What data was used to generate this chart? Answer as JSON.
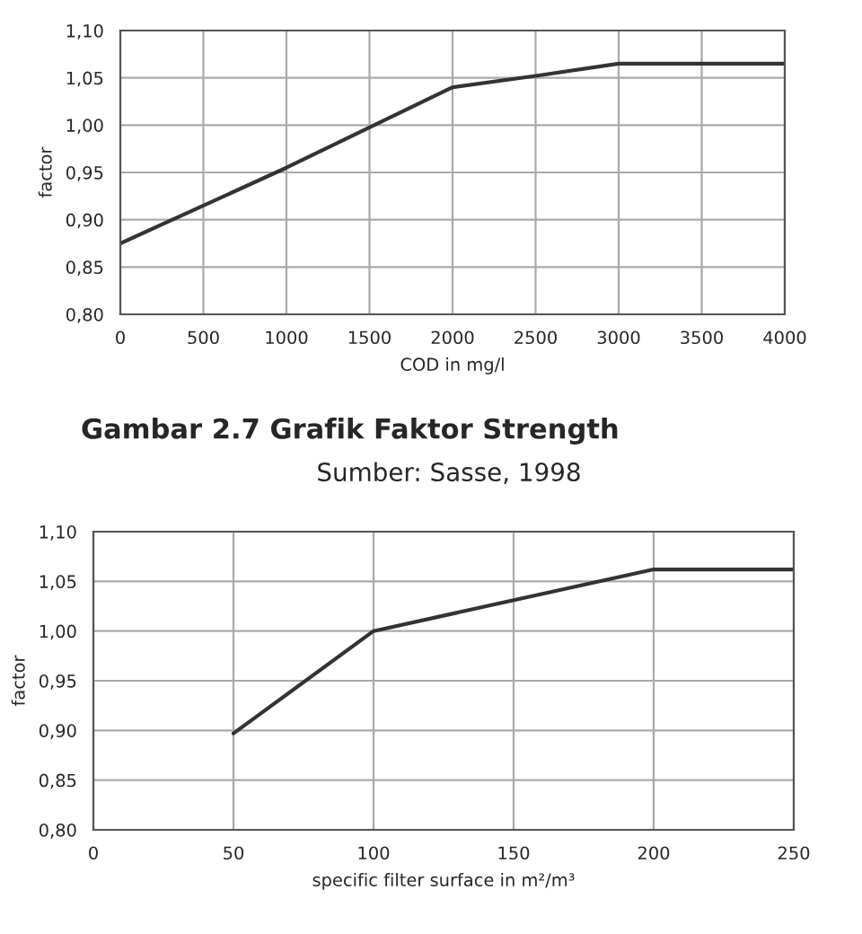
{
  "chart_data": [
    {
      "type": "line",
      "xlabel": "COD in mg/l",
      "ylabel": "factor",
      "annotations": [
        "Gambar 2.7 Grafik Faktor Strength",
        "Sumber: Sasse, 1998"
      ],
      "x": [
        0,
        1000,
        2000,
        2500,
        3000,
        4000
      ],
      "series": [
        {
          "color": "#333333",
          "values": [
            0.875,
            0.955,
            1.04,
            1.052,
            1.065,
            1.065
          ]
        }
      ],
      "xlim": [
        0,
        4000
      ],
      "xticks": [
        0,
        500,
        1000,
        1500,
        2000,
        2500,
        3000,
        3500,
        4000
      ],
      "ylim": [
        0.8,
        1.1
      ],
      "yticks": [
        {
          "value": 0.8,
          "label": "0,80"
        },
        {
          "value": 0.85,
          "label": "0,85"
        },
        {
          "value": 0.9,
          "label": "0,90"
        },
        {
          "value": 0.95,
          "label": "0,95"
        },
        {
          "value": 1.0,
          "label": "1,00"
        },
        {
          "value": 1.05,
          "label": "1,05"
        },
        {
          "value": 1.1,
          "label": "1,10"
        }
      ],
      "grid": true,
      "marker": "none",
      "line_style": "solid"
    },
    {
      "type": "line",
      "xlabel": "specific filter surface in m²/m³",
      "ylabel": "factor",
      "x": [
        50,
        100,
        200,
        250
      ],
      "series": [
        {
          "color": "#333333",
          "values": [
            0.897,
            1.0,
            1.062,
            1.062
          ]
        }
      ],
      "xlim": [
        0,
        250
      ],
      "xticks": [
        0,
        50,
        100,
        150,
        200,
        250
      ],
      "ylim": [
        0.8,
        1.1
      ],
      "yticks": [
        {
          "value": 0.8,
          "label": "0,80"
        },
        {
          "value": 0.85,
          "label": "0,85"
        },
        {
          "value": 0.9,
          "label": "0,90"
        },
        {
          "value": 0.95,
          "label": "0,95"
        },
        {
          "value": 1.0,
          "label": "1,00"
        },
        {
          "value": 1.05,
          "label": "1,05"
        },
        {
          "value": 1.1,
          "label": "1,10"
        }
      ],
      "grid": true,
      "marker": "none",
      "line_style": "solid"
    }
  ]
}
